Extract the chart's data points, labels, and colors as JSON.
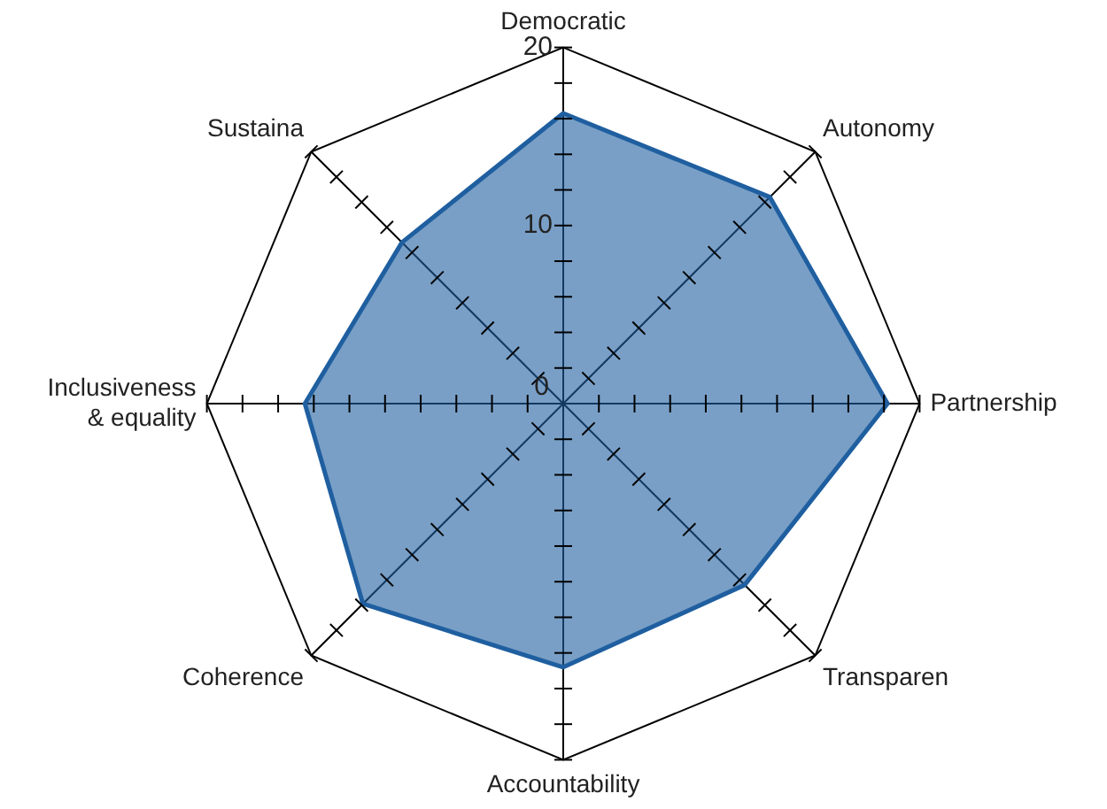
{
  "chart_data": {
    "type": "radar",
    "categories": [
      "Democratic",
      "Autonomy",
      "Partnership",
      "Transparen",
      "Accountability",
      "Coherence",
      "Inclusiveness & equality",
      "Sustaina"
    ],
    "series": [
      {
        "color": "#1f5fa0",
        "values": [
          16.3,
          16.4,
          18.2,
          14.4,
          14.8,
          15.9,
          14.5,
          12.8
        ]
      }
    ],
    "ylim": [
      0,
      20
    ],
    "yticks": [
      0,
      10,
      20
    ],
    "grid": false,
    "legend": false,
    "marker": "none"
  }
}
